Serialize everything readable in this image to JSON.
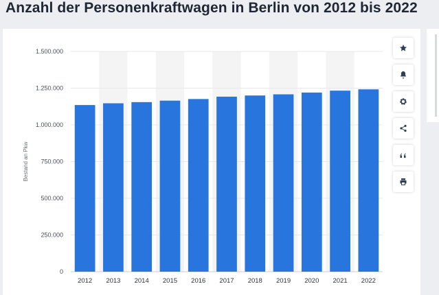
{
  "title": "Anzahl der Personenkraftwagen in Berlin von 2012 bis 2022",
  "toolbar": [
    {
      "name": "star-icon"
    },
    {
      "name": "bell-icon"
    },
    {
      "name": "gear-icon"
    },
    {
      "name": "share-icon"
    },
    {
      "name": "quote-icon"
    },
    {
      "name": "print-icon"
    }
  ],
  "colors": {
    "bar": "#2876dd",
    "stripe": "#f4f4f5"
  },
  "chart_data": {
    "type": "bar",
    "categories": [
      "2012",
      "2013",
      "2014",
      "2015",
      "2016",
      "2017",
      "2018",
      "2019",
      "2020",
      "2021",
      "2022"
    ],
    "values": [
      1135000,
      1147000,
      1155000,
      1165000,
      1176000,
      1192000,
      1200000,
      1208000,
      1220000,
      1233000,
      1242000
    ],
    "ylabel": "Bestand an Pkw",
    "xlabel": "",
    "ylim": [
      0,
      1500000
    ],
    "yticks": [
      0,
      250000,
      500000,
      750000,
      1000000,
      1250000,
      1500000
    ],
    "ytick_labels": [
      "0",
      "250.000",
      "500.000",
      "750.000",
      "1.000.000",
      "1.250.000",
      "1.500.000"
    ],
    "grid": true,
    "legend": "none"
  }
}
